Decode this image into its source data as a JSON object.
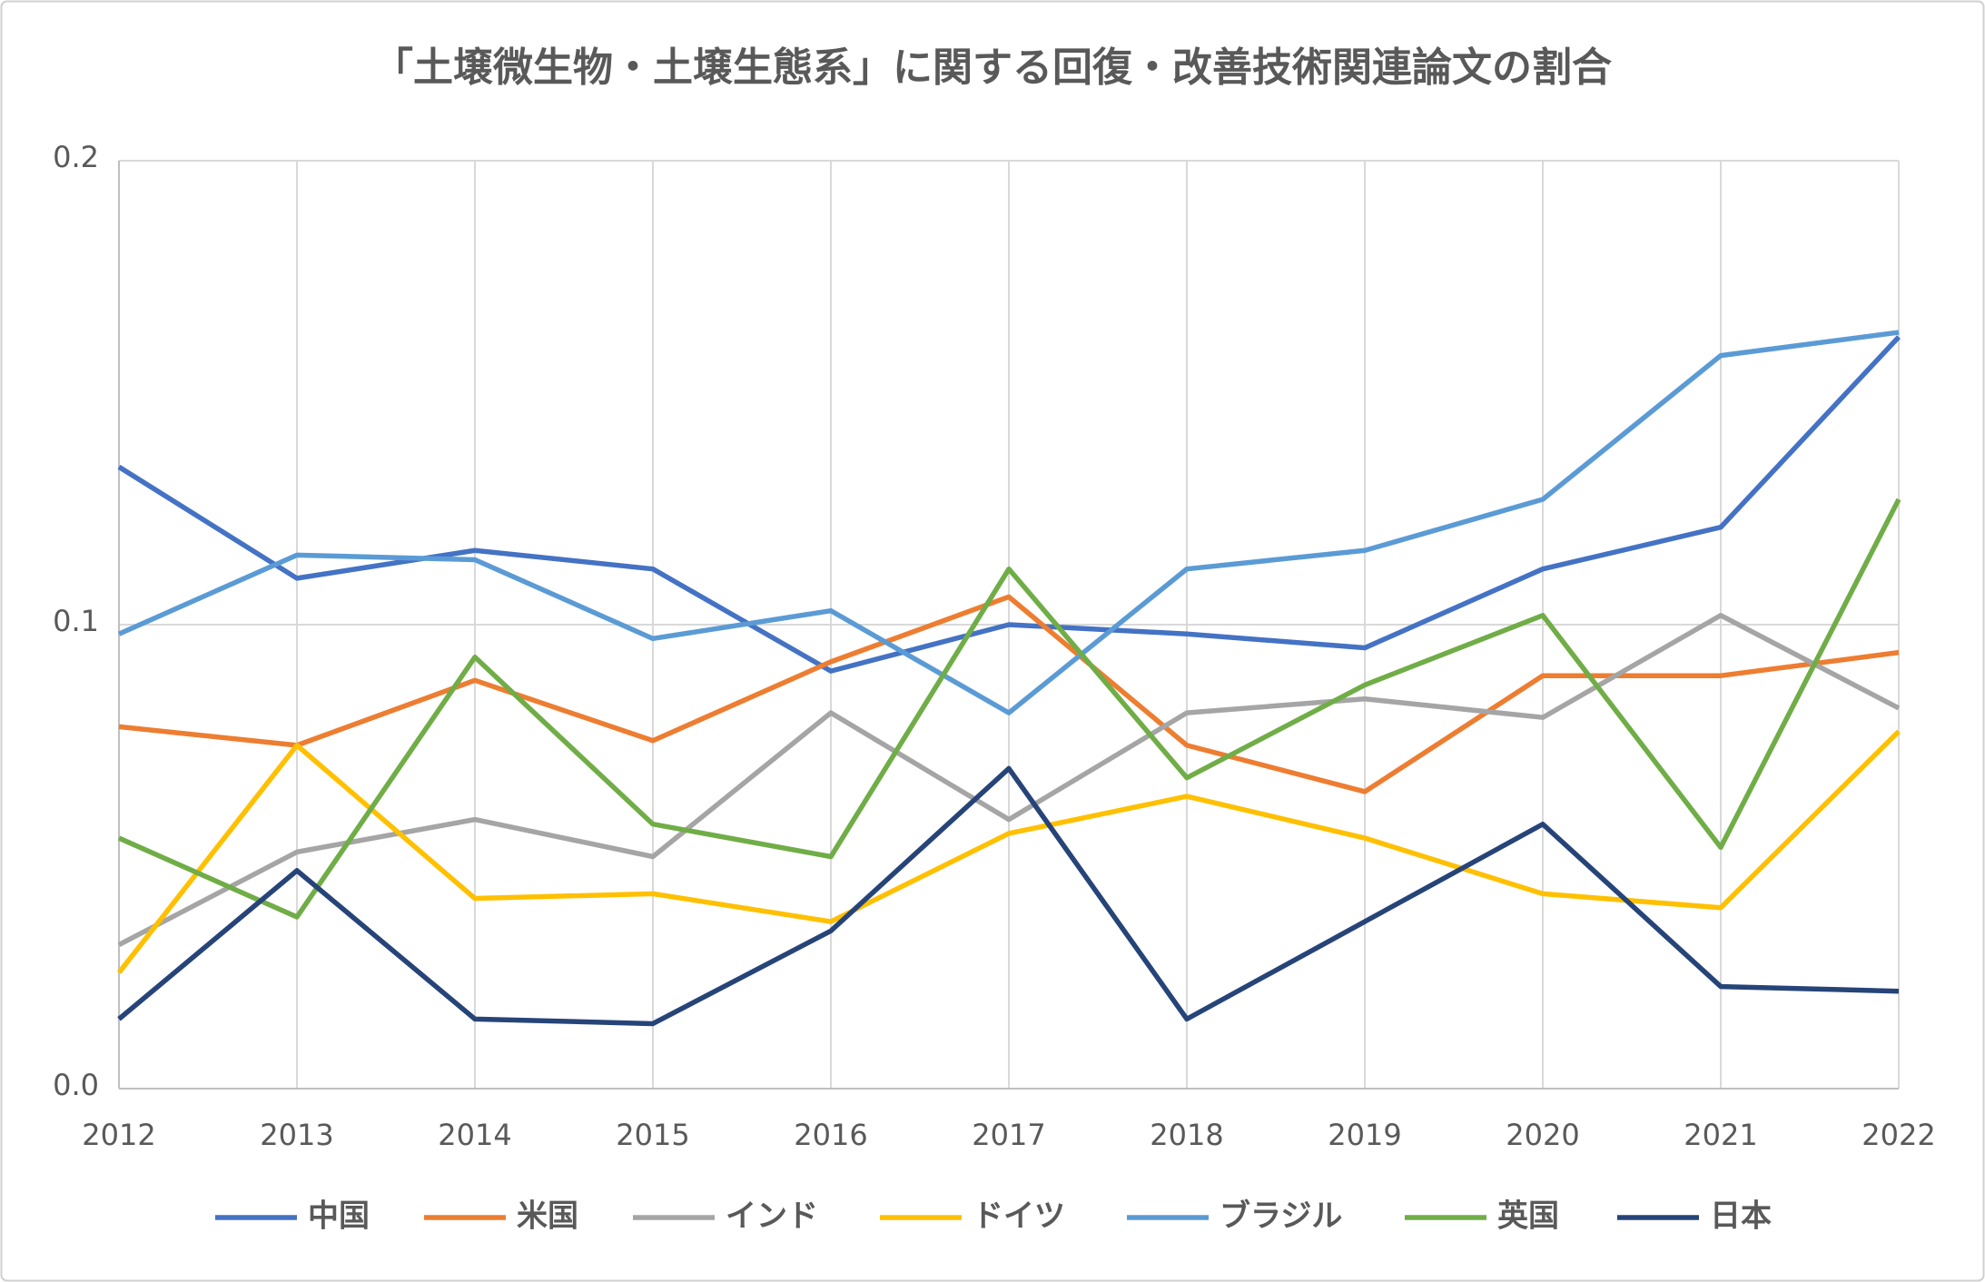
{
  "chart_data": {
    "type": "line",
    "title": "「土壌微生物・土壌生態系」に関する回復・改善技術関連論文の割合",
    "categories": [
      "2012",
      "2013",
      "2014",
      "2015",
      "2016",
      "2017",
      "2018",
      "2019",
      "2020",
      "2021",
      "2022"
    ],
    "ylim": [
      0,
      0.2
    ],
    "yticks": [
      {
        "value": 0,
        "label": "0.0"
      },
      0.1,
      0.2
    ],
    "grid": true,
    "legend": "bottom",
    "series": [
      {
        "name": "中国",
        "color": "#4472c4",
        "values": [
          0.134,
          0.11,
          0.116,
          0.112,
          0.09,
          0.1,
          0.098,
          0.095,
          0.112,
          0.121,
          0.162
        ]
      },
      {
        "name": "米国",
        "color": "#ed7d31",
        "values": [
          0.078,
          0.074,
          0.088,
          0.075,
          0.092,
          0.106,
          0.074,
          0.064,
          0.089,
          0.089,
          0.094
        ]
      },
      {
        "name": "インド",
        "color": "#a5a5a5",
        "values": [
          0.031,
          0.051,
          0.058,
          0.05,
          0.081,
          0.058,
          0.081,
          0.084,
          0.08,
          0.102,
          0.082
        ]
      },
      {
        "name": "ドイツ",
        "color": "#ffc000",
        "values": [
          0.025,
          0.074,
          0.041,
          0.042,
          0.036,
          0.055,
          0.063,
          0.054,
          0.042,
          0.039,
          0.077
        ]
      },
      {
        "name": "ブラジル",
        "color": "#5b9bd5",
        "values": [
          0.098,
          0.115,
          0.114,
          0.097,
          0.103,
          0.081,
          0.112,
          0.116,
          0.127,
          0.158,
          0.163
        ]
      },
      {
        "name": "英国",
        "color": "#70ad47",
        "values": [
          0.054,
          0.037,
          0.093,
          0.057,
          0.05,
          0.112,
          0.067,
          0.087,
          0.102,
          0.052,
          0.127
        ]
      },
      {
        "name": "日本",
        "color": "#264478",
        "values": [
          0.015,
          0.047,
          0.015,
          0.014,
          0.034,
          0.069,
          0.015,
          0.036,
          0.057,
          0.022,
          0.021
        ]
      }
    ]
  }
}
